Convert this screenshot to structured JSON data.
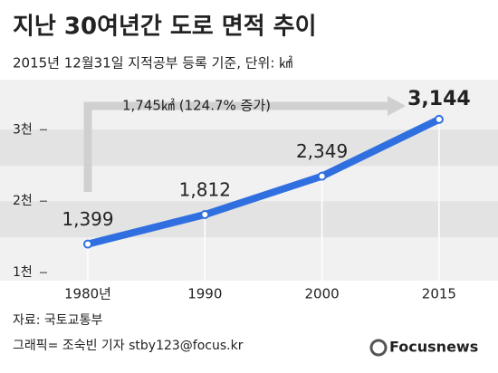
{
  "chart_data": {
    "type": "line",
    "title": "지난 30여년간 도로 면적 추이",
    "subtitle": "2015년 12월31일 지적공부 등록 기준, 단위: ㎢",
    "annotation": "1,745㎢ (124.7% 증가)",
    "categories": [
      "1980년",
      "1990",
      "2000",
      "2015"
    ],
    "values": [
      1399,
      1812,
      2349,
      3144
    ],
    "value_labels": [
      "1,399",
      "1,812",
      "2,349",
      "3,144"
    ],
    "color": "#2f6fe0",
    "ylim": [
      900,
      3700
    ],
    "yticks": [
      {
        "value": 1000,
        "label": "1천"
      },
      {
        "value": 2000,
        "label": "2천"
      },
      {
        "value": 3000,
        "label": "3천"
      }
    ],
    "source": "자료: 국토교통부",
    "credit": "그래픽= 조숙빈 기자 stby123@focus.kr",
    "logo": "Focusnews"
  }
}
